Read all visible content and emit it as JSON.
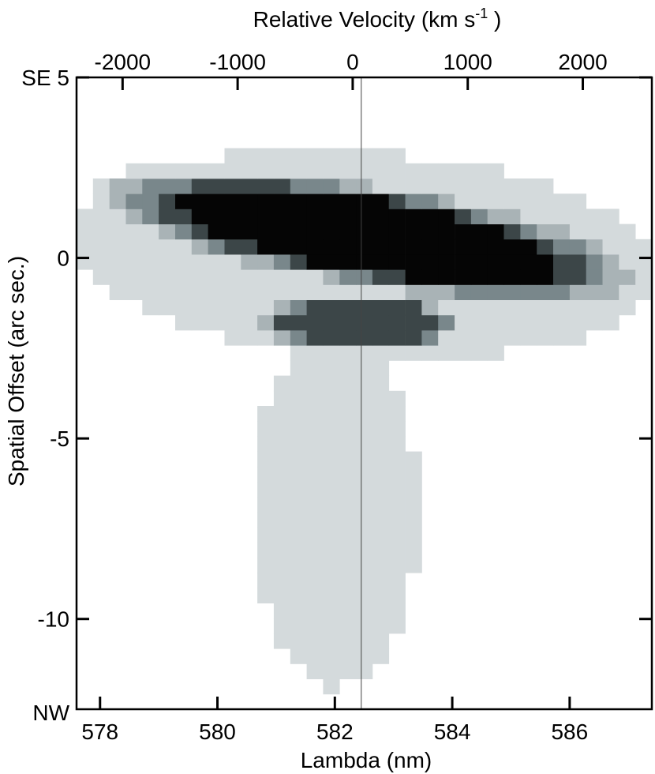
{
  "chart_data": {
    "type": "heatmap",
    "title": "",
    "xlabel": "Lambda (nm)",
    "ylabel": "Spatial Offset (arc sec.)",
    "x2label": "Relative Velocity (km s",
    "x2label_sup": "-1",
    "x2label_end": " )",
    "xlim": [
      577.6,
      587.4
    ],
    "ylim": [
      -12.5,
      5
    ],
    "x2lim": [
      -2400,
      2600
    ],
    "xticks": [
      578,
      580,
      582,
      584,
      586
    ],
    "xtick_labels": [
      "578",
      "580",
      "582",
      "584",
      "586"
    ],
    "yticks": [
      5,
      0,
      -5,
      -10
    ],
    "ytick_labels": [
      "SE 5",
      "0",
      "-5",
      "-10"
    ],
    "x2ticks": [
      -2000,
      -1000,
      0,
      1000,
      2000
    ],
    "x2tick_labels": [
      "-2000",
      "-1000",
      "0",
      "1000",
      "2000"
    ],
    "corner_label_bottom": "NW",
    "reference_wavelength": 582.45,
    "colormap": "grayscale (white = low, black = high)",
    "intensity_levels": [
      {
        "level": 1,
        "color": "#d4dadc"
      },
      {
        "level": 2,
        "color": "#a9b3b6"
      },
      {
        "level": 3,
        "color": "#79878b"
      },
      {
        "level": 4,
        "color": "#3c4648"
      },
      {
        "level": 5,
        "color": "#050505"
      }
    ],
    "components": [
      {
        "x_center": 582.6,
        "y_center": 0.6,
        "x_halfwidth": 3.2,
        "y_halfwidth": 1.0,
        "tilt": -0.25,
        "peak": 5
      },
      {
        "x_center": 582.4,
        "y_center": -1.8,
        "x_halfwidth": 1.3,
        "y_halfwidth": 0.6,
        "tilt": 0,
        "peak": 4
      },
      {
        "x_center": 582.5,
        "y_center": 0.1,
        "x_halfwidth": 4.6,
        "y_halfwidth": 2.6,
        "tilt": -0.1,
        "peak": 1
      },
      {
        "x_center": 582.0,
        "y_center": -7.0,
        "x_halfwidth": 1.3,
        "y_halfwidth": 4.5,
        "tilt": 0,
        "peak": 1
      }
    ]
  }
}
